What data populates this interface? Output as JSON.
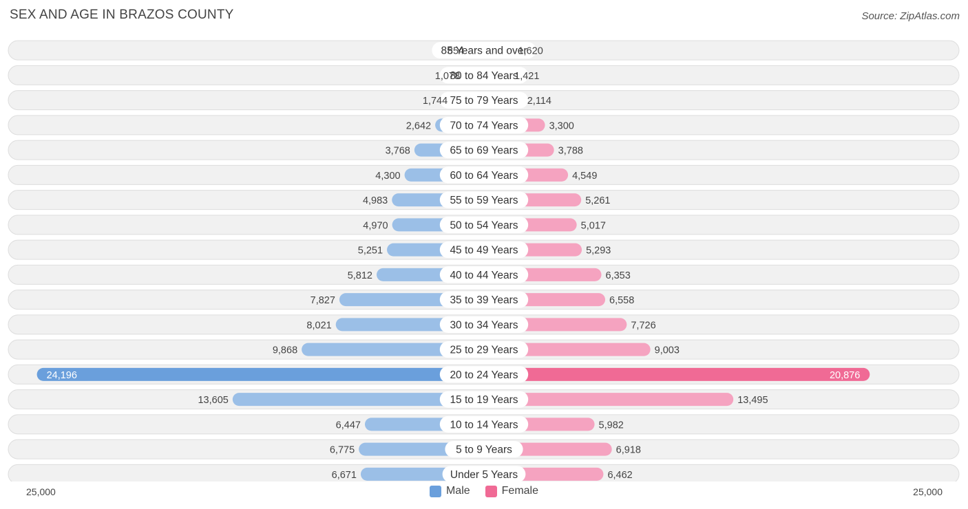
{
  "header": {
    "title": "SEX AND AGE IN BRAZOS COUNTY",
    "source": "Source: ZipAtlas.com"
  },
  "legend": {
    "male_label": "Male",
    "female_label": "Female"
  },
  "axis": {
    "left_label": "25,000",
    "right_label": "25,000"
  },
  "colors": {
    "male": "#9bbfe7",
    "male_highlight": "#6a9fdc",
    "female": "#f5a3c0",
    "female_highlight": "#f06a95",
    "row_bg": "#f1f1f1",
    "row_border": "#dddddd"
  },
  "chart_data": {
    "type": "bar",
    "orientation": "horizontal-diverging",
    "title": "SEX AND AGE IN BRAZOS COUNTY",
    "xlim": [
      -25000,
      25000
    ],
    "categories": [
      "85 Years and over",
      "80 to 84 Years",
      "75 to 79 Years",
      "70 to 74 Years",
      "65 to 69 Years",
      "60 to 64 Years",
      "55 to 59 Years",
      "50 to 54 Years",
      "45 to 49 Years",
      "40 to 44 Years",
      "35 to 39 Years",
      "30 to 34 Years",
      "25 to 29 Years",
      "20 to 24 Years",
      "15 to 19 Years",
      "10 to 14 Years",
      "5 to 9 Years",
      "Under 5 Years"
    ],
    "series": [
      {
        "name": "Male",
        "values": [
          854,
          1078,
          1744,
          2642,
          3768,
          4300,
          4983,
          4970,
          5251,
          5812,
          7827,
          8021,
          9868,
          24196,
          13605,
          6447,
          6775,
          6671
        ]
      },
      {
        "name": "Female",
        "values": [
          1620,
          1421,
          2114,
          3300,
          3788,
          4549,
          5261,
          5017,
          5293,
          6353,
          6558,
          7726,
          9003,
          20876,
          13495,
          5982,
          6918,
          6462
        ]
      }
    ],
    "legend": [
      "Male",
      "Female"
    ],
    "legend_position": "bottom-center"
  }
}
